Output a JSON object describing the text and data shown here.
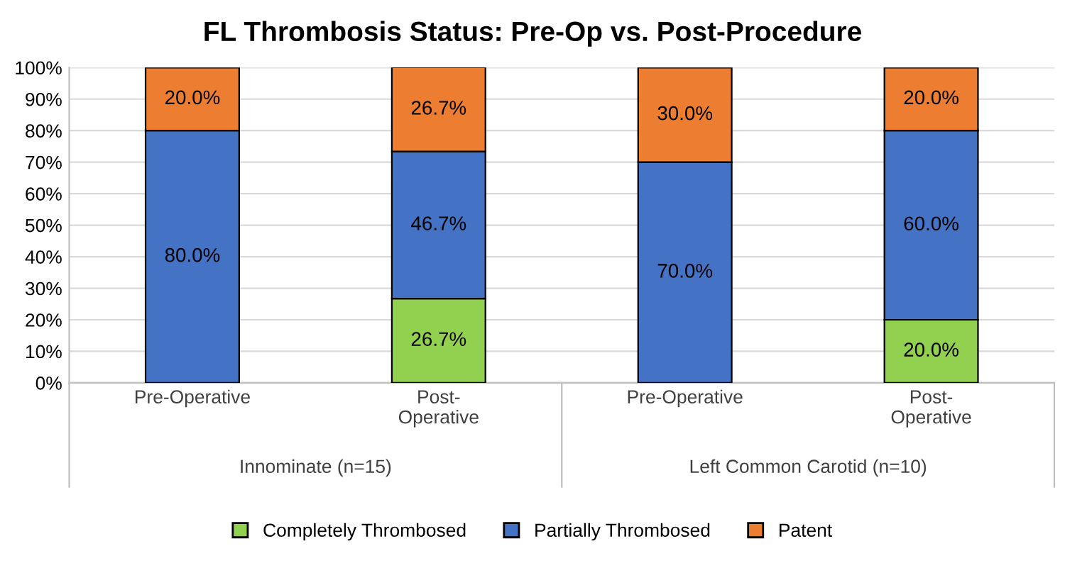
{
  "chart_data": {
    "type": "bar",
    "stacked": true,
    "title": "FL Thrombosis Status: Pre-Op vs. Post-Procedure",
    "categories": [
      "Pre-Operative",
      "Post-\nOperative",
      "Pre-Operative",
      "Post-\nOperative"
    ],
    "series": [
      {
        "name": "Completely Thrombosed",
        "color": "#92d050",
        "values": [
          0,
          26.7,
          0,
          20.0
        ],
        "value_labels": [
          null,
          "26.7%",
          null,
          "20.0%"
        ]
      },
      {
        "name": "Partially Thrombosed",
        "color": "#4472c4",
        "values": [
          80.0,
          46.7,
          70.0,
          60.0
        ],
        "value_labels": [
          "80.0%",
          "46.7%",
          "70.0%",
          "60.0%"
        ]
      },
      {
        "name": "Patent",
        "color": "#ed7d31",
        "values": [
          20.0,
          26.7,
          30.0,
          20.0
        ],
        "value_labels": [
          "20.0%",
          "26.7%",
          "30.0%",
          "20.0%"
        ]
      }
    ],
    "annotations": [
      "Innominate (n=15)",
      "Left Common Carotid (n=10)"
    ],
    "ylim": [
      0,
      100
    ],
    "yticks": [
      {
        "value": 0,
        "label": "0%"
      },
      {
        "value": 10,
        "label": "10%"
      },
      {
        "value": 20,
        "label": "20%"
      },
      {
        "value": 30,
        "label": "30%"
      },
      {
        "value": 40,
        "label": "40%"
      },
      {
        "value": 50,
        "label": "50%"
      },
      {
        "value": 60,
        "label": "60%"
      },
      {
        "value": 70,
        "label": "70%"
      },
      {
        "value": 80,
        "label": "80%"
      },
      {
        "value": 90,
        "label": "90%"
      },
      {
        "value": 100,
        "label": "100%"
      }
    ],
    "grid": "y",
    "legend": "bottom"
  }
}
